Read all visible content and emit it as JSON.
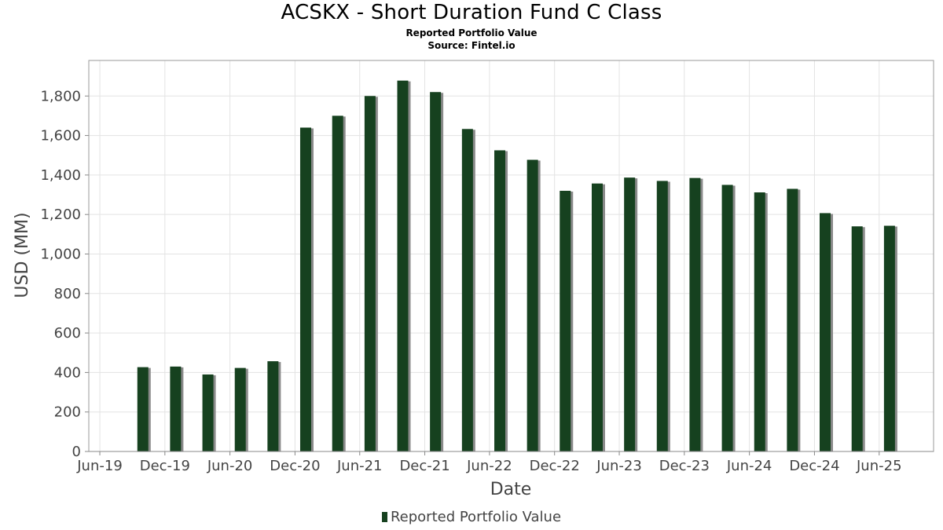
{
  "header": {
    "title": "ACSKX - Short Duration Fund C Class",
    "subtitle": "Reported Portfolio Value",
    "source": "Source: Fintel.io"
  },
  "legend": {
    "label": "Reported Portfolio Value",
    "swatch_color": "#16411f"
  },
  "chart_data": {
    "type": "bar",
    "title": "ACSKX - Short Duration Fund C Class",
    "subtitle": "Reported Portfolio Value",
    "xlabel": "Date",
    "ylabel": "USD (MM)",
    "ylim": [
      0,
      1980
    ],
    "yticks": [
      0,
      200,
      400,
      600,
      800,
      1000,
      1200,
      1400,
      1600,
      1800
    ],
    "ytick_labels": [
      "0",
      "200",
      "400",
      "600",
      "800",
      "1,000",
      "1,200",
      "1,400",
      "1,600",
      "1,800"
    ],
    "xlim": [
      "2019-05-01",
      "2025-11-01"
    ],
    "xticks": [
      "2019-06-01",
      "2019-12-01",
      "2020-06-01",
      "2020-12-01",
      "2021-06-01",
      "2021-12-01",
      "2022-06-01",
      "2022-12-01",
      "2023-06-01",
      "2023-12-01",
      "2024-06-01",
      "2024-12-01",
      "2025-06-01"
    ],
    "xtick_labels": [
      "Jun-19",
      "Dec-19",
      "Jun-20",
      "Dec-20",
      "Jun-21",
      "Dec-21",
      "Jun-22",
      "Dec-22",
      "Jun-23",
      "Dec-23",
      "Jun-24",
      "Dec-24",
      "Jun-25"
    ],
    "grid": true,
    "legend_position": "bottom-center",
    "bar_color": "#16411f",
    "series": [
      {
        "name": "Reported Portfolio Value",
        "x": [
          "2019-09-30",
          "2019-12-31",
          "2020-03-31",
          "2020-06-30",
          "2020-09-30",
          "2020-12-31",
          "2021-03-31",
          "2021-06-30",
          "2021-09-30",
          "2021-12-31",
          "2022-03-31",
          "2022-06-30",
          "2022-09-30",
          "2022-12-31",
          "2023-03-31",
          "2023-06-30",
          "2023-09-30",
          "2023-12-31",
          "2024-03-31",
          "2024-06-30",
          "2024-09-30",
          "2024-12-31",
          "2025-03-31",
          "2025-06-30"
        ],
        "values": [
          427,
          430,
          390,
          423,
          457,
          1640,
          1700,
          1800,
          1878,
          1820,
          1633,
          1525,
          1477,
          1320,
          1357,
          1387,
          1370,
          1385,
          1350,
          1312,
          1330,
          1207,
          1140,
          1143
        ]
      }
    ]
  }
}
